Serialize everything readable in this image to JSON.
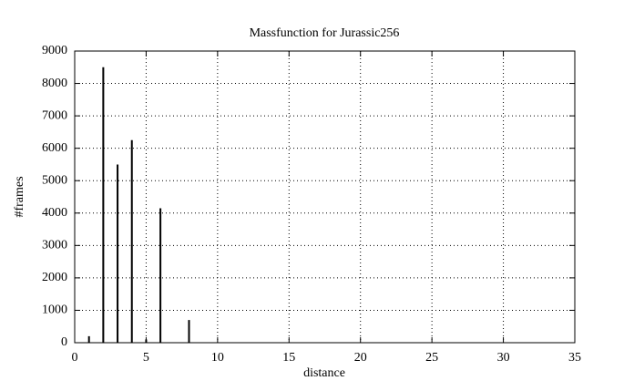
{
  "chart_data": {
    "type": "impulse",
    "title": "Massfunction for Jurassic256",
    "x_label": "distance",
    "y_label": "#frames",
    "x": [
      1,
      2,
      3,
      4,
      5,
      6,
      8
    ],
    "values": [
      200,
      8500,
      5500,
      6250,
      100,
      4150,
      700
    ],
    "color": "#000000",
    "xlim": [
      0,
      35
    ],
    "xticks": [
      0,
      5,
      10,
      15,
      20,
      25,
      30,
      35
    ],
    "ylim": [
      0,
      9000
    ],
    "yticks": [
      0,
      1000,
      2000,
      3000,
      4000,
      5000,
      6000,
      7000,
      8000,
      9000
    ],
    "grid": true
  }
}
